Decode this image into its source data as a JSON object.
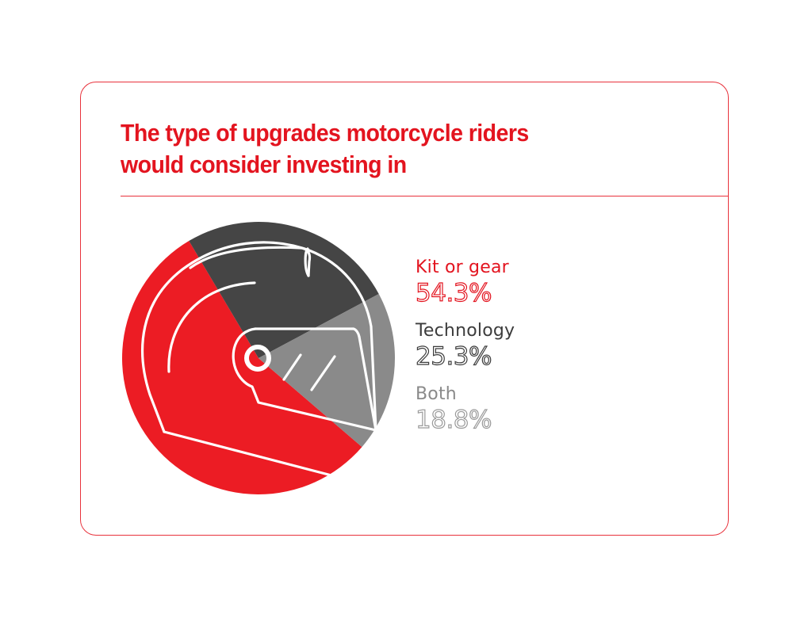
{
  "title": "The type of upgrades motorcycle riders would consider investing in",
  "title_lines": [
    "The type of upgrades motorcycle riders",
    "would consider investing in"
  ],
  "colors": {
    "accent": "#e3141f",
    "border": "#e8323c",
    "kit_or_gear": "#ec1c24",
    "technology": "#454545",
    "both": "#8a8a8a",
    "helmet_line": "#ffffff"
  },
  "icon": "motorcycle-helmet-icon",
  "legend": [
    {
      "label": "Kit or gear",
      "value": "54.3%",
      "color": "#e3141f"
    },
    {
      "label": "Technology",
      "value": "25.3%",
      "color": "#3c3c3c"
    },
    {
      "label": "Both",
      "value": "18.8%",
      "color": "#8a8a8a"
    }
  ],
  "chart_data": {
    "type": "pie",
    "title": "The type of upgrades motorcycle riders would consider investing in",
    "categories": [
      "Kit or gear",
      "Technology",
      "Both"
    ],
    "values": [
      54.3,
      25.3,
      18.8
    ],
    "unit": "%",
    "colors": [
      "#ec1c24",
      "#454545",
      "#8a8a8a"
    ],
    "legend_position": "right",
    "grid": false,
    "annotations": [
      "Motorcycle helmet line illustration overlaid on pie"
    ]
  }
}
